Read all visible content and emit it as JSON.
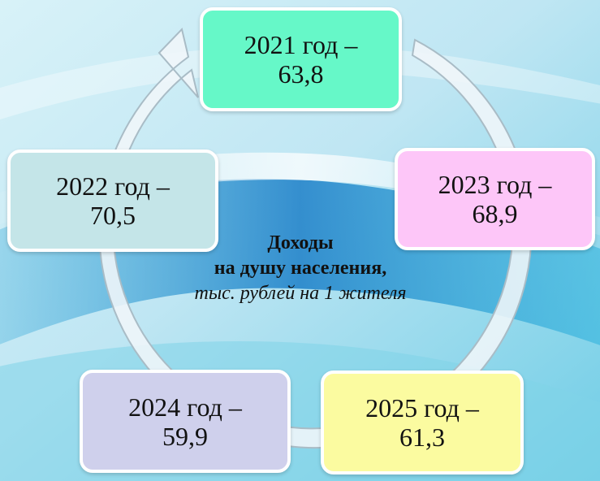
{
  "center": {
    "line1": "Доходы",
    "line2": "на душу населения,",
    "line3": "тыс. рублей на 1 жителя"
  },
  "nodes": [
    {
      "year": "2021 год –",
      "value": "63,8",
      "fill": "#66f8c8"
    },
    {
      "year": "2023 год –",
      "value": "68,9",
      "fill": "#fdc6f8"
    },
    {
      "year": "2025 год –",
      "value": "61,3",
      "fill": "#fbfba0"
    },
    {
      "year": "2024 год –",
      "value": "59,9",
      "fill": "#cfd0ec"
    },
    {
      "year": "2022 год –",
      "value": "70,5",
      "fill": "#c4e5e8"
    }
  ],
  "chart_data": {
    "type": "table",
    "title": "Доходы на душу населения, тыс. рублей на 1 жителя",
    "categories": [
      "2021",
      "2022",
      "2023",
      "2024",
      "2025"
    ],
    "values": [
      63.8,
      70.5,
      68.9,
      59.9,
      61.3
    ]
  }
}
